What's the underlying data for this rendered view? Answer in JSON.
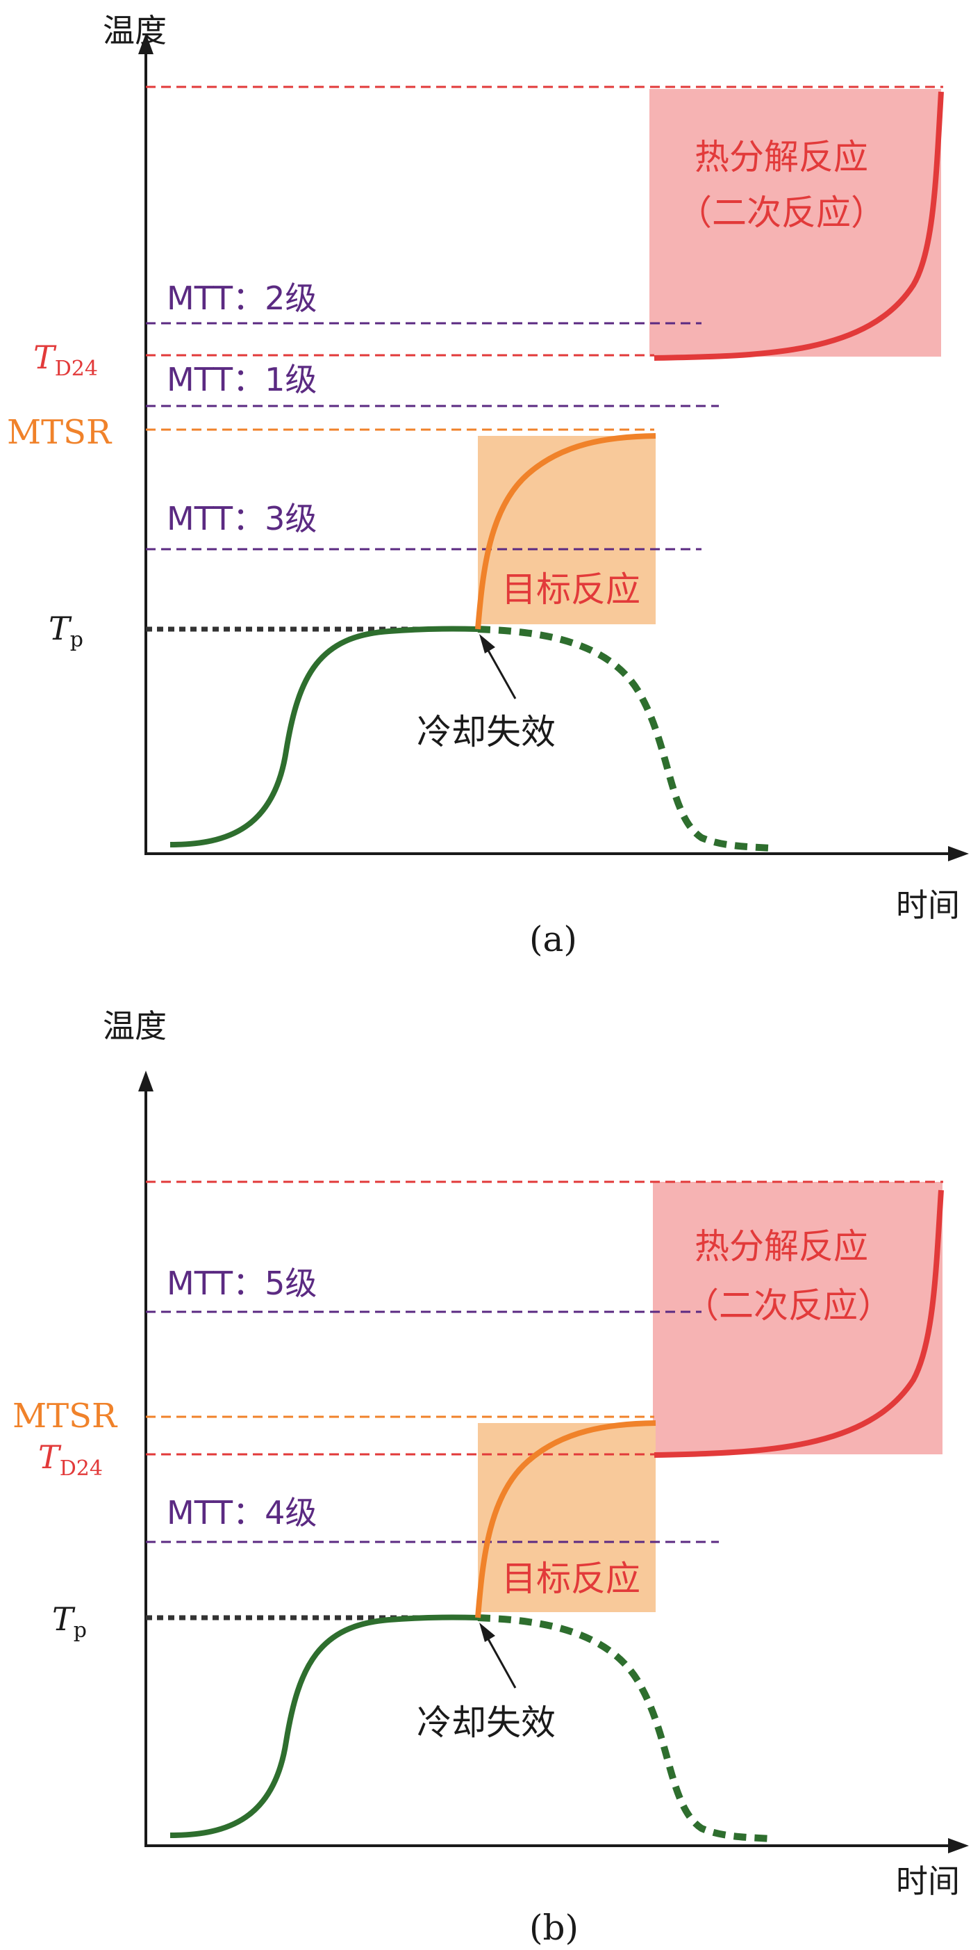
{
  "panels": [
    {
      "caption": "(a)",
      "y_axis_label": "温度",
      "x_axis_label": "时间",
      "tp_label": {
        "main": "T",
        "sub": "p"
      },
      "td24_label": {
        "main": "T",
        "sub": "D24"
      },
      "mtsr_label": "MTSR",
      "mtt_lines": [
        {
          "label": "MTT：2级"
        },
        {
          "label": "MTT：1级"
        },
        {
          "label": "MTT：3级"
        }
      ],
      "decomposition_label_1": "热分解反应",
      "decomposition_label_2": "（二次反应）",
      "target_reaction_label": "目标反应",
      "cooling_failure_label": "冷却失效"
    },
    {
      "caption": "(b)",
      "y_axis_label": "温度",
      "x_axis_label": "时间",
      "tp_label": {
        "main": "T",
        "sub": "p"
      },
      "td24_label": {
        "main": "T",
        "sub": "D24"
      },
      "mtsr_label": "MTSR",
      "mtt_lines": [
        {
          "label": "MTT：5级"
        },
        {
          "label": "MTT：4级"
        }
      ],
      "decomposition_label_1": "热分解反应",
      "decomposition_label_2": "（二次反应）",
      "target_reaction_label": "目标反应",
      "cooling_failure_label": "冷却失效"
    }
  ],
  "colors": {
    "red": "#e23a3a",
    "orange": "#f0822a",
    "purple": "#5b2a82",
    "green": "#2e6e2e",
    "pink_box": "#f6b3b3",
    "orange_box": "#f8c99a",
    "axis": "#1a1a1a"
  }
}
